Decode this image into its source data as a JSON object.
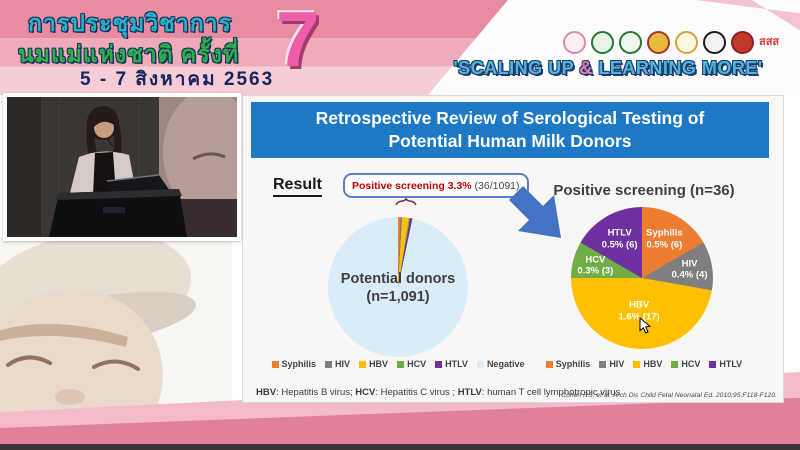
{
  "banner": {
    "title_line1": "การประชุมวิชาการ",
    "title_line2": "นมแม่แห่งชาติ ครั้งที่",
    "date_line": "5 - 7 สิงหาคม 2563",
    "edition_number": "7",
    "slogan": {
      "prefix": "'SCALING UP ",
      "amp": "&",
      "suffix": " LEARNING MORE'"
    },
    "logos": [
      {
        "name": "mother-child-foundation-logo",
        "ring": "#d98ca6",
        "fill": "#fbeff3"
      },
      {
        "name": "public-health-green-logo",
        "ring": "#1f7a33",
        "fill": "#e8f3e9"
      },
      {
        "name": "health-department-green-logo",
        "ring": "#1f7a33",
        "fill": "#eef6ee"
      },
      {
        "name": "royal-college-emblem-logo",
        "ring": "#a93226",
        "fill": "#e7b93c"
      },
      {
        "name": "royal-institute-crown-logo",
        "ring": "#d4a23a",
        "fill": "#fdf6e0"
      },
      {
        "name": "medical-society-bw-logo",
        "ring": "#1a1a1a",
        "fill": "#f2f2f2"
      },
      {
        "name": "pediatric-society-red-logo",
        "ring": "#8f1d22",
        "fill": "#c0392b"
      },
      {
        "name": "thai-health-sss-logo",
        "text": "สสส"
      }
    ]
  },
  "slide": {
    "title": "Retrospective Review of Serological Testing of Potential Human Milk Donors",
    "result_label": "Result",
    "callout": {
      "highlight": "Positive screening 3.3%",
      "detail": " (36/1091)"
    },
    "footnote_segments": [
      {
        "text": "HBV",
        "bold": true
      },
      {
        "text": ": Hepatitis B virus; "
      },
      {
        "text": "HCV",
        "bold": true
      },
      {
        "text": ": Hepatitis C virus ; "
      },
      {
        "text": "HTLV",
        "bold": true
      },
      {
        "text": ": human T cell lymphotropic virus"
      }
    ],
    "citation": "Cohen RS, et al. Arch Dis Child Fetal Neonatal Ed. 2010;95:F118-F120."
  },
  "chart_data": [
    {
      "type": "pie",
      "title": "Potential donors (n=1,091)",
      "center_label_line1": "Potential donors",
      "center_label_line2": "(n=1,091)",
      "total": 1091,
      "slices": [
        {
          "label": "Syphilis",
          "value": 6,
          "color": "#ED7D31"
        },
        {
          "label": "HIV",
          "value": 4,
          "color": "#7F7F7F"
        },
        {
          "label": "HBV",
          "value": 17,
          "color": "#FFC000"
        },
        {
          "label": "HCV",
          "value": 3,
          "color": "#70AD47"
        },
        {
          "label": "HTLV",
          "value": 6,
          "color": "#7030A0"
        },
        {
          "label": "Negative",
          "value": 1055,
          "color": "#d9ecf8"
        }
      ],
      "legend_items": [
        {
          "label": "Syphilis",
          "color": "#ED7D31"
        },
        {
          "label": "HIV",
          "color": "#7F7F7F"
        },
        {
          "label": "HBV",
          "color": "#FFC000"
        },
        {
          "label": "HCV",
          "color": "#70AD47"
        },
        {
          "label": "HTLV",
          "color": "#7030A0"
        },
        {
          "label": "Negative",
          "color": "#d9ecf8"
        }
      ],
      "start_angle_deg": 0,
      "direction": "clockwise",
      "legend_position": "bottom"
    },
    {
      "type": "pie",
      "title": "Positive screening (n=36)",
      "total": 36,
      "slices": [
        {
          "label": "Syphilis",
          "value": 6,
          "pct_label": "0.5% (6)",
          "color": "#ED7D31"
        },
        {
          "label": "HIV",
          "value": 4,
          "pct_label": "0.4% (4)",
          "color": "#7F7F7F"
        },
        {
          "label": "HBV",
          "value": 17,
          "pct_label": "1.6% (17)",
          "color": "#FFC000"
        },
        {
          "label": "HCV",
          "value": 3,
          "pct_label": "0.3% (3)",
          "color": "#70AD47"
        },
        {
          "label": "HTLV",
          "value": 6,
          "pct_label": "0.5% (6)",
          "color": "#7030A0"
        }
      ],
      "legend_items": [
        {
          "label": "Syphilis",
          "color": "#ED7D31"
        },
        {
          "label": "HIV",
          "color": "#7F7F7F"
        },
        {
          "label": "HBV",
          "color": "#FFC000"
        },
        {
          "label": "HCV",
          "color": "#70AD47"
        },
        {
          "label": "HTLV",
          "color": "#7030A0"
        }
      ],
      "start_angle_deg": 0,
      "direction": "clockwise",
      "legend_position": "bottom"
    }
  ],
  "colors": {
    "title_bar_blue": "#1d79c6",
    "arrow_blue": "#4472c4",
    "callout_red": "#c00000",
    "banner_pink": "#e78ca0",
    "band_pink_light": "#f3bbc8",
    "band_pink_dark": "#e18197"
  }
}
